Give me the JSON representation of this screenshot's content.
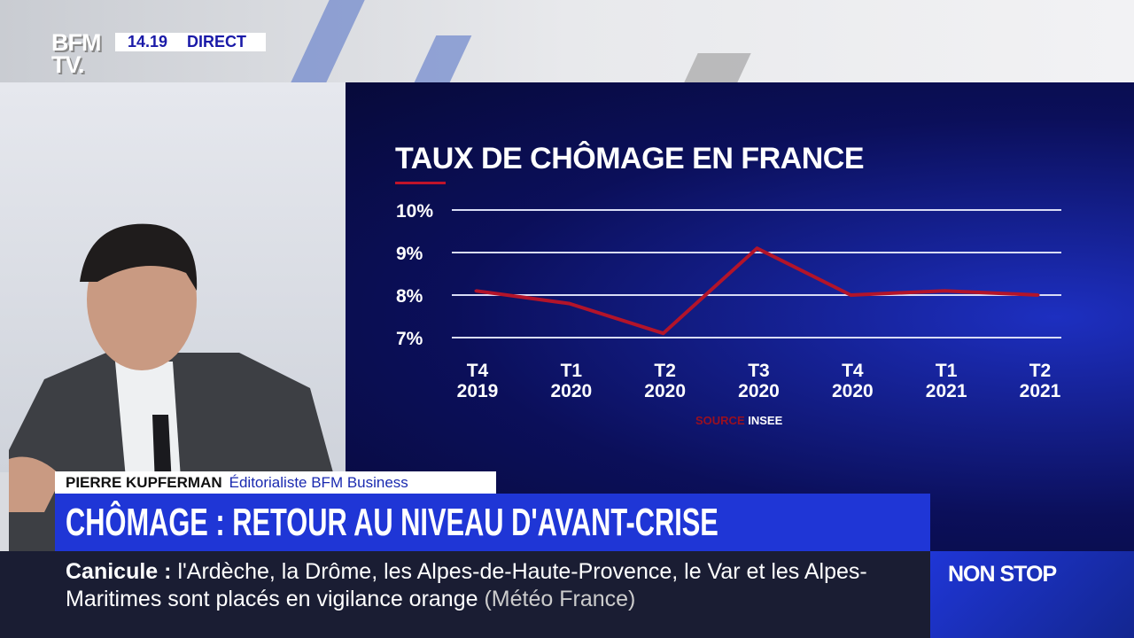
{
  "broadcast": {
    "logo": "BFM TV.",
    "time": "14.19",
    "live_label": "DIRECT"
  },
  "chart_data": {
    "type": "line",
    "title": "TAUX DE CHÔMAGE EN FRANCE",
    "categories": [
      "T4 2019",
      "T1 2020",
      "T2 2020",
      "T3 2020",
      "T4 2020",
      "T1 2021",
      "T2 2021"
    ],
    "category_lines": [
      [
        "T4",
        "2019"
      ],
      [
        "T1",
        "2020"
      ],
      [
        "T2",
        "2020"
      ],
      [
        "T3",
        "2020"
      ],
      [
        "T4",
        "2020"
      ],
      [
        "T1",
        "2021"
      ],
      [
        "T2",
        "2021"
      ]
    ],
    "values": [
      8.1,
      7.8,
      7.1,
      9.1,
      8.0,
      8.1,
      8.0
    ],
    "yticks": [
      "10%",
      "9%",
      "8%",
      "7%"
    ],
    "ylim": [
      7,
      10
    ],
    "grid": true,
    "line_color": "#b3142a",
    "source_label": "SOURCE",
    "source_value": "INSEE"
  },
  "lower_third": {
    "name": "PIERRE KUPFERMAN",
    "role": "Éditorialiste BFM Business",
    "headline": "CHÔMAGE : RETOUR AU NIVEAU D'AVANT-CRISE"
  },
  "ticker": {
    "topic": "Canicule",
    "separator": ":",
    "text": "l'Ardèche, la Drôme, les Alpes-de-Haute-Provence, le Var et les Alpes-Maritimes sont placés en vigilance orange",
    "source": "(Météo France)"
  },
  "channel_tag": "NON STOP",
  "colors": {
    "accent_blue": "#1f36d6",
    "panel": "#0b0f5a",
    "red": "#b3142a"
  }
}
